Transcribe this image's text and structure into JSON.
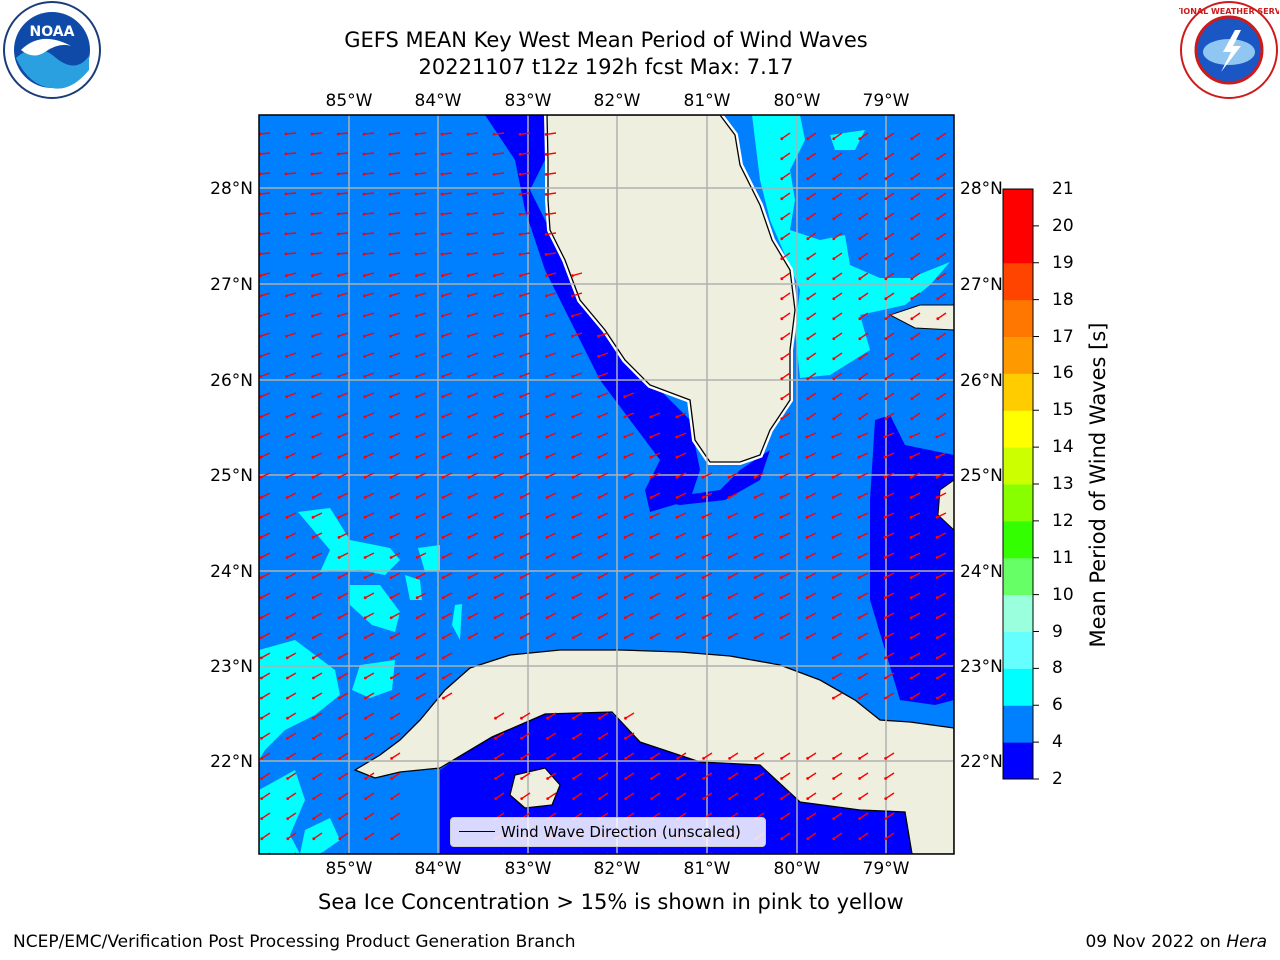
{
  "header": {
    "title_line1": "GEFS MEAN Key West Mean Period of Wind Waves",
    "title_line2": "20221107 t12z 192h fcst   Max: 7.17"
  },
  "map": {
    "lon_labels": [
      "85°W",
      "84°W",
      "83°W",
      "82°W",
      "81°W",
      "80°W",
      "79°W"
    ],
    "lat_labels": [
      "28°N",
      "27°N",
      "26°N",
      "25°N",
      "24°N",
      "23°N",
      "22°N"
    ],
    "legend_label": "Wind Wave Direction (unscaled)",
    "colors": {
      "ocean_dark": "#0000ff",
      "ocean_mid": "#0080ff",
      "ocean_light": "#00ffff",
      "land": "#efefdf",
      "arrow": "#ff0000",
      "grid": "#b0b0b0"
    }
  },
  "colorbar": {
    "label": "Mean Period of Wind Waves [s]",
    "ticks": [
      "21",
      "20",
      "19",
      "18",
      "17",
      "16",
      "15",
      "14",
      "13",
      "12",
      "11",
      "10",
      "9",
      "8",
      "6",
      "4",
      "2"
    ],
    "colors_bottom_to_top": [
      "#0000ff",
      "#0080ff",
      "#00ffff",
      "#66ffff",
      "#99ffdd",
      "#66ff66",
      "#33ff00",
      "#88ff00",
      "#ccff00",
      "#ffff00",
      "#ffcc00",
      "#ff9900",
      "#ff7700",
      "#ff4400",
      "#ff0000"
    ]
  },
  "subtitle": "Sea Ice Concentration > 15% is shown in pink to yellow",
  "footer": {
    "left": "NCEP/EMC/Verification Post Processing Product Generation Branch",
    "date": "09 Nov 2022 on ",
    "host": "Hera"
  },
  "logos": {
    "noaa_text": "NOAA",
    "nws_text": "NATIONAL WEATHER SERVICE"
  }
}
